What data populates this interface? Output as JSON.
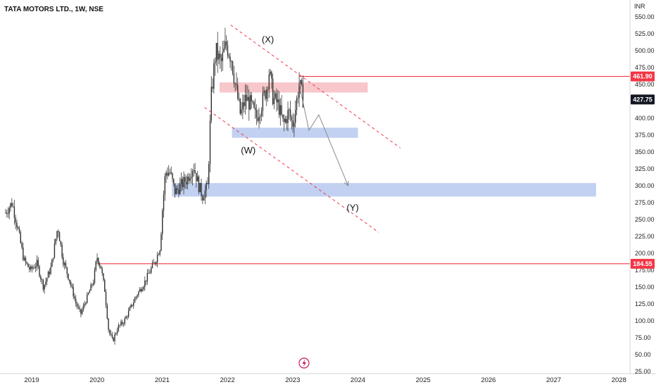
{
  "chart_data": {
    "type": "candlestick",
    "title": "TATA MOTORS LTD., 1W, NSE",
    "currency_label": "INR",
    "y_ticks": [
      "550.00",
      "525.00",
      "500.00",
      "475.00",
      "450.00",
      "425.00",
      "400.00",
      "375.00",
      "350.00",
      "325.00",
      "300.00",
      "275.00",
      "250.00",
      "225.00",
      "200.00",
      "175.00",
      "150.00",
      "125.00",
      "100.00",
      "75.00",
      "50.00",
      "25.00"
    ],
    "x_ticks": [
      "2019",
      "2020",
      "2021",
      "2022",
      "2023",
      "2024",
      "2025",
      "2026",
      "2027",
      "2028"
    ],
    "ylim": [
      25,
      560
    ],
    "xlim": [
      2018.6,
      2028.2
    ],
    "grid": false,
    "price_path": [
      [
        2018.6,
        260
      ],
      [
        2018.7,
        275
      ],
      [
        2018.78,
        240
      ],
      [
        2018.88,
        190
      ],
      [
        2018.98,
        175
      ],
      [
        2019.08,
        185
      ],
      [
        2019.18,
        150
      ],
      [
        2019.3,
        180
      ],
      [
        2019.4,
        240
      ],
      [
        2019.48,
        190
      ],
      [
        2019.58,
        160
      ],
      [
        2019.68,
        125
      ],
      [
        2019.75,
        110
      ],
      [
        2019.85,
        135
      ],
      [
        2019.95,
        160
      ],
      [
        2020.0,
        195
      ],
      [
        2020.06,
        180
      ],
      [
        2020.12,
        145
      ],
      [
        2020.18,
        85
      ],
      [
        2020.24,
        70
      ],
      [
        2020.32,
        90
      ],
      [
        2020.42,
        100
      ],
      [
        2020.52,
        120
      ],
      [
        2020.62,
        140
      ],
      [
        2020.72,
        155
      ],
      [
        2020.82,
        175
      ],
      [
        2020.9,
        190
      ],
      [
        2020.97,
        210
      ],
      [
        2021.0,
        260
      ],
      [
        2021.05,
        320
      ],
      [
        2021.12,
        320
      ],
      [
        2021.2,
        290
      ],
      [
        2021.28,
        300
      ],
      [
        2021.38,
        310
      ],
      [
        2021.48,
        330
      ],
      [
        2021.56,
        300
      ],
      [
        2021.62,
        285
      ],
      [
        2021.7,
        300
      ],
      [
        2021.75,
        430
      ],
      [
        2021.82,
        500
      ],
      [
        2021.9,
        480
      ],
      [
        2021.98,
        510
      ],
      [
        2022.06,
        490
      ],
      [
        2022.12,
        450
      ],
      [
        2022.2,
        405
      ],
      [
        2022.28,
        430
      ],
      [
        2022.36,
        420
      ],
      [
        2022.44,
        400
      ],
      [
        2022.52,
        420
      ],
      [
        2022.6,
        445
      ],
      [
        2022.64,
        470
      ],
      [
        2022.7,
        430
      ],
      [
        2022.78,
        420
      ],
      [
        2022.86,
        390
      ],
      [
        2022.94,
        410
      ],
      [
        2023.0,
        390
      ],
      [
        2023.06,
        425
      ],
      [
        2023.1,
        452
      ],
      [
        2023.16,
        428
      ]
    ],
    "levels": [
      {
        "value": 461.9,
        "label": "461.90",
        "color": "#f23645"
      },
      {
        "value": 184.55,
        "label": "184.55",
        "color": "#f23645"
      }
    ],
    "last_price": {
      "value": 427.75,
      "label": "427.75"
    },
    "zones": [
      {
        "name": "resistance",
        "x": [
          2021.88,
          2024.15
        ],
        "y": [
          438,
          453
        ],
        "color": "#f7c7cb"
      },
      {
        "name": "support-upper",
        "x": [
          2022.07,
          2024.0
        ],
        "y": [
          371,
          386
        ],
        "color": "#c2d1f2"
      },
      {
        "name": "support-target",
        "x": [
          2021.15,
          2027.65
        ],
        "y": [
          284,
          304
        ],
        "color": "#c2d1f2"
      }
    ],
    "channel": [
      {
        "from": [
          2022.05,
          538
        ],
        "to": [
          2024.65,
          356
        ]
      },
      {
        "from": [
          2021.65,
          416
        ],
        "to": [
          2024.32,
          231
        ]
      }
    ],
    "projection": [
      [
        2023.1,
        450
      ],
      [
        2023.25,
        382
      ],
      [
        2023.4,
        405
      ],
      [
        2023.85,
        300
      ]
    ],
    "annotations": [
      {
        "text": "(X)",
        "x": 2022.62,
        "y": 512
      },
      {
        "text": "(W)",
        "x": 2022.32,
        "y": 348
      },
      {
        "text": "(Y)",
        "x": 2023.92,
        "y": 263
      }
    ]
  }
}
